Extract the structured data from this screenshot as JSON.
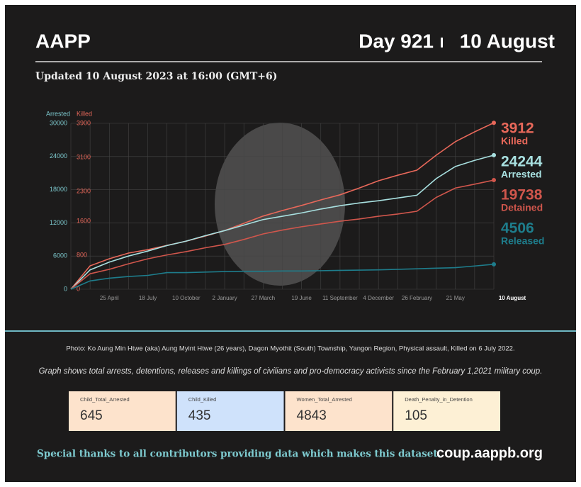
{
  "header": {
    "title": "AAPP",
    "day": "Day 921",
    "date": "10 August",
    "updated": "Updated 10 August 2023 at 16:00 (GMT+6)"
  },
  "chart_data": {
    "type": "line",
    "y_label": "Arrested",
    "y2_label": "Killed",
    "categories": [
      null,
      null,
      "25 April",
      null,
      "18 July",
      null,
      "10 October",
      null,
      "2 January",
      null,
      "27 March",
      null,
      "19 June",
      null,
      "11 September",
      null,
      "4 December",
      null,
      "26 February",
      null,
      "21 May",
      null,
      "10 August"
    ],
    "ylim": [
      0,
      30000
    ],
    "yticks": [
      0,
      6000,
      12000,
      18000,
      24000,
      30000
    ],
    "y2lim": [
      0,
      3900
    ],
    "y2ticks": [
      0,
      800,
      1600,
      2300,
      3100,
      3900
    ],
    "grid": true,
    "series": [
      {
        "name": "Killed",
        "color": "#e8685a",
        "axis": "y2",
        "values": [
          0,
          550,
          717,
          850,
          930,
          1030,
          1130,
          1250,
          1380,
          1550,
          1720,
          1850,
          1970,
          2100,
          2220,
          2380,
          2550,
          2680,
          2800,
          3150,
          3470,
          3700,
          3912
        ]
      },
      {
        "name": "Arrested",
        "color": "#a8e0e0",
        "values": [
          0,
          3500,
          4900,
          6000,
          6900,
          7900,
          8700,
          9700,
          10600,
          11600,
          12600,
          13200,
          13800,
          14500,
          15100,
          15600,
          16000,
          16500,
          17000,
          20000,
          22200,
          23300,
          24244
        ]
      },
      {
        "name": "Detained",
        "color": "#d0564c",
        "values": [
          0,
          2800,
          3600,
          4600,
          5500,
          6200,
          6800,
          7500,
          8100,
          9000,
          10000,
          10700,
          11300,
          11800,
          12300,
          12700,
          13200,
          13600,
          14100,
          16600,
          18300,
          19000,
          19738
        ]
      },
      {
        "name": "Released",
        "color": "#1e7d8c",
        "values": [
          0,
          1500,
          2000,
          2300,
          2500,
          3000,
          3000,
          3100,
          3200,
          3250,
          3250,
          3300,
          3300,
          3350,
          3400,
          3450,
          3500,
          3600,
          3700,
          3800,
          3900,
          4200,
          4506
        ]
      }
    ]
  },
  "caption": "Photo: Ko Aung Min Htwe (aka) Aung Myint Htwe (26 years), Dagon Myothit (South) Township, Yangon Region, Physical assault, Killed on 6 July 2022.",
  "subtitle": "Graph shows total arrests, detentions, releases and killings of civilians and pro-democracy activists since the February 1,2021 military coup.",
  "stats": [
    {
      "label": "Child_Total_Arrested",
      "value": 645
    },
    {
      "label": "Child_Killed",
      "value": 435
    },
    {
      "label": "Women_Total_Arrested",
      "value": 4843
    },
    {
      "label": "Death_Penalty_in_Detention",
      "value": 105
    }
  ],
  "footer": {
    "thanks": "Special thanks to all contributors providing data which makes this dataset.",
    "url": "coup.aappb.org"
  }
}
